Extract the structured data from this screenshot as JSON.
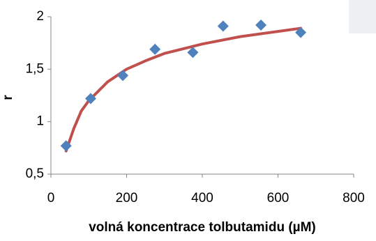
{
  "chart_data": {
    "type": "scatter",
    "x_label": "volná koncentrace tolbutamidu (µM)",
    "y_label": "r",
    "xlim": [
      0,
      800
    ],
    "xticks": [
      0,
      200,
      400,
      600,
      800
    ],
    "ylim": [
      0.5,
      2
    ],
    "yticks": [
      {
        "value": 0.5,
        "label": "0,5"
      },
      1,
      {
        "value": 1.5,
        "label": "1,5"
      },
      2
    ],
    "series": [
      {
        "mode": "markers",
        "color": "#4f81bd",
        "x": [
          40,
          105,
          190,
          275,
          375,
          455,
          555,
          660
        ],
        "values": [
          0.77,
          1.22,
          1.44,
          1.69,
          1.66,
          1.91,
          1.92,
          1.85
        ]
      },
      {
        "mode": "line",
        "color": "#c0504d",
        "x": [
          40,
          60,
          80,
          100,
          150,
          200,
          250,
          300,
          400,
          500,
          600,
          660
        ],
        "values": [
          0.72,
          0.93,
          1.1,
          1.2,
          1.38,
          1.5,
          1.58,
          1.65,
          1.74,
          1.81,
          1.86,
          1.89
        ]
      }
    ]
  }
}
